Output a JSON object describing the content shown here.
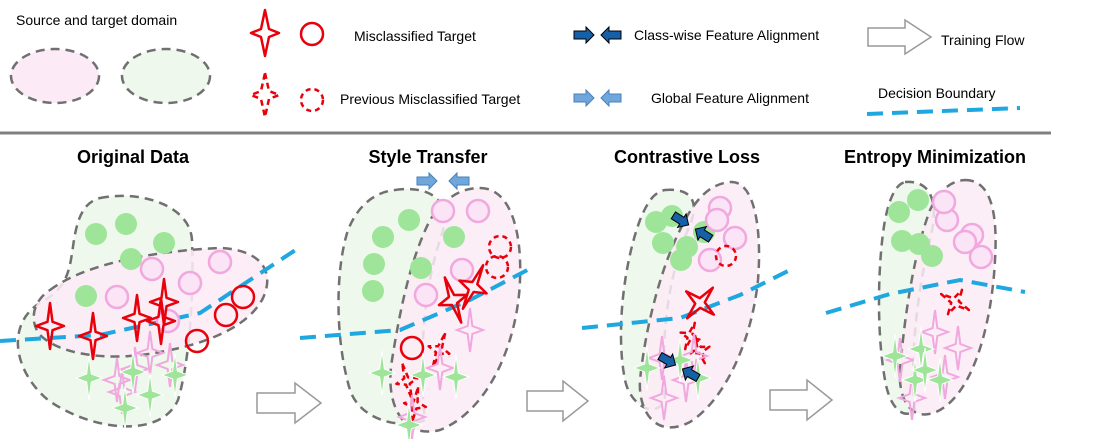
{
  "legend": {
    "domain_label": "Source and target domain",
    "misclassified_label": "Misclassified Target",
    "previous_misclassified_label": "Previous  Misclassified Target",
    "class_alignment_label": "Class-wise Feature Alignment",
    "global_alignment_label": "Global Feature Alignment",
    "training_flow_label": "Training Flow",
    "decision_boundary_label": "Decision Boundary"
  },
  "panels": {
    "original": "Original Data",
    "style": "Style Transfer",
    "contrastive": "Contrastive Loss",
    "entropy": "Entropy Minimization"
  },
  "colors": {
    "source_fill": "#eef8ec",
    "target_fill": "#fcebf6",
    "green_marker": "#9ee59a",
    "pink_marker": "#f0a8de",
    "pink_fill": "#fbe4f5",
    "red": "#e8000b",
    "boundary": "#1fa7e0",
    "dark_arrow": "#1660a8",
    "light_arrow": "#6fa7dc",
    "separator": "#808080",
    "outline_dash": "#707070"
  }
}
